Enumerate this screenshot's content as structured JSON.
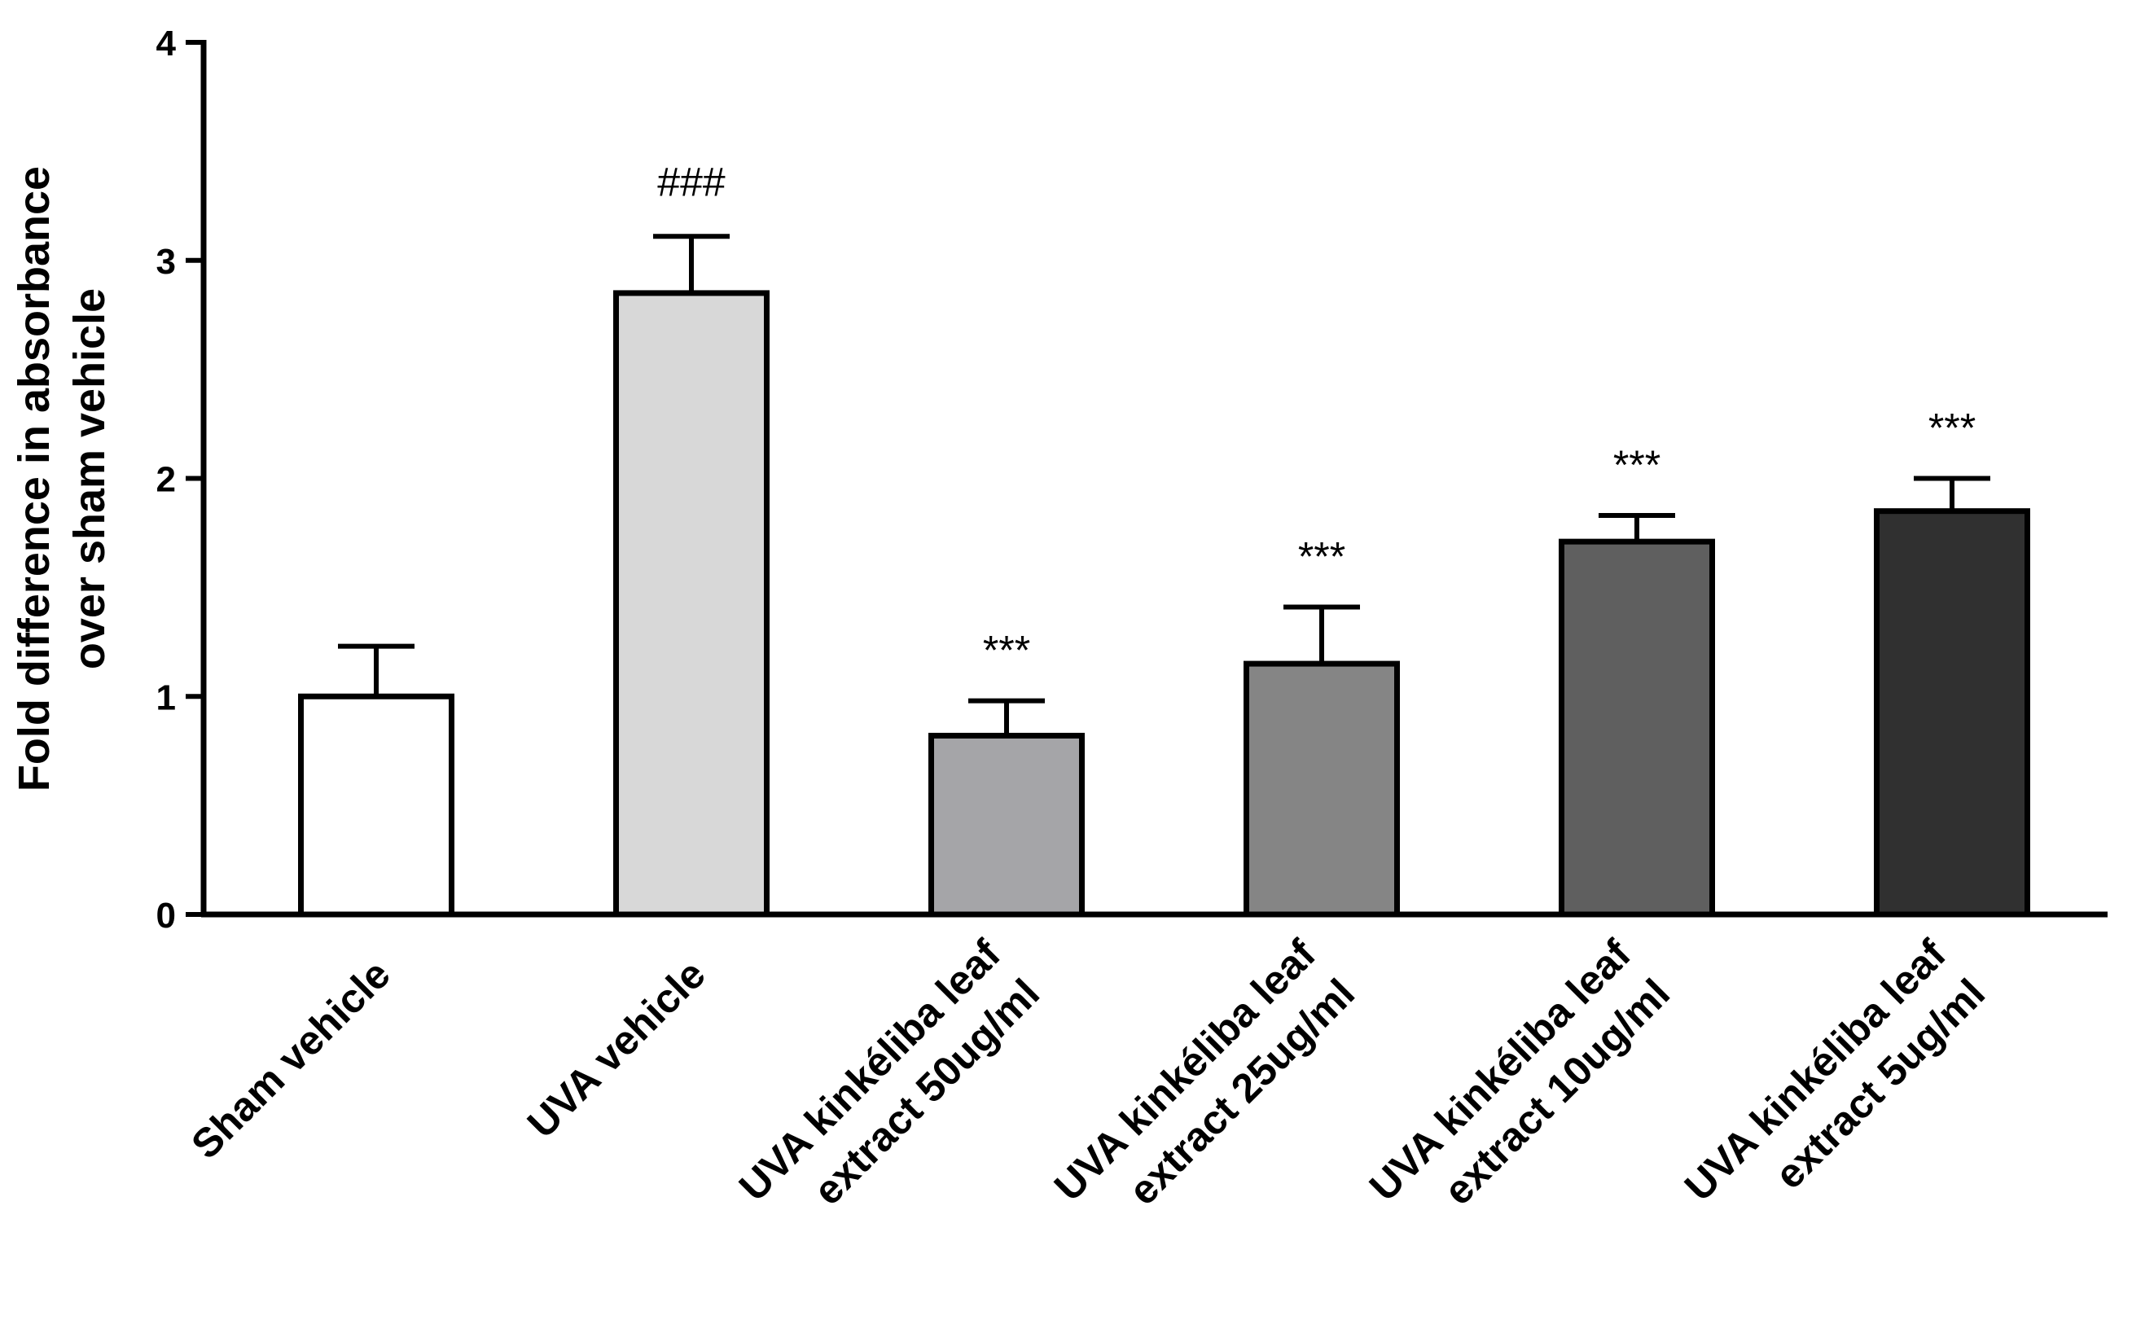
{
  "chart_data": {
    "type": "bar",
    "title": "",
    "xlabel": "",
    "ylabel": [
      "Fold difference in absorbance",
      "over sham vehicle"
    ],
    "ylim": [
      0,
      4
    ],
    "yticks": [
      0,
      1,
      2,
      3,
      4
    ],
    "categories": [
      [
        "Sham vehicle"
      ],
      [
        "UVA vehicle"
      ],
      [
        "UVA kinkéliba leaf",
        "extract 50ug/ml"
      ],
      [
        "UVA kinkéliba leaf",
        "extract 25ug/ml"
      ],
      [
        "UVA kinkéliba leaf",
        "extract 10ug/ml"
      ],
      [
        "UVA kinkéliba leaf",
        "extract 5ug/ml"
      ]
    ],
    "values": [
      1.0,
      2.85,
      0.82,
      1.15,
      1.71,
      1.85
    ],
    "errors": [
      0.23,
      0.26,
      0.16,
      0.26,
      0.12,
      0.15
    ],
    "significance": [
      "",
      "###",
      "***",
      "***",
      "***",
      "***"
    ],
    "colors": [
      "#ffffff",
      "#d8d8d8",
      "#a5a5a8",
      "#858585",
      "#5f5f5f",
      "#303030"
    ]
  }
}
